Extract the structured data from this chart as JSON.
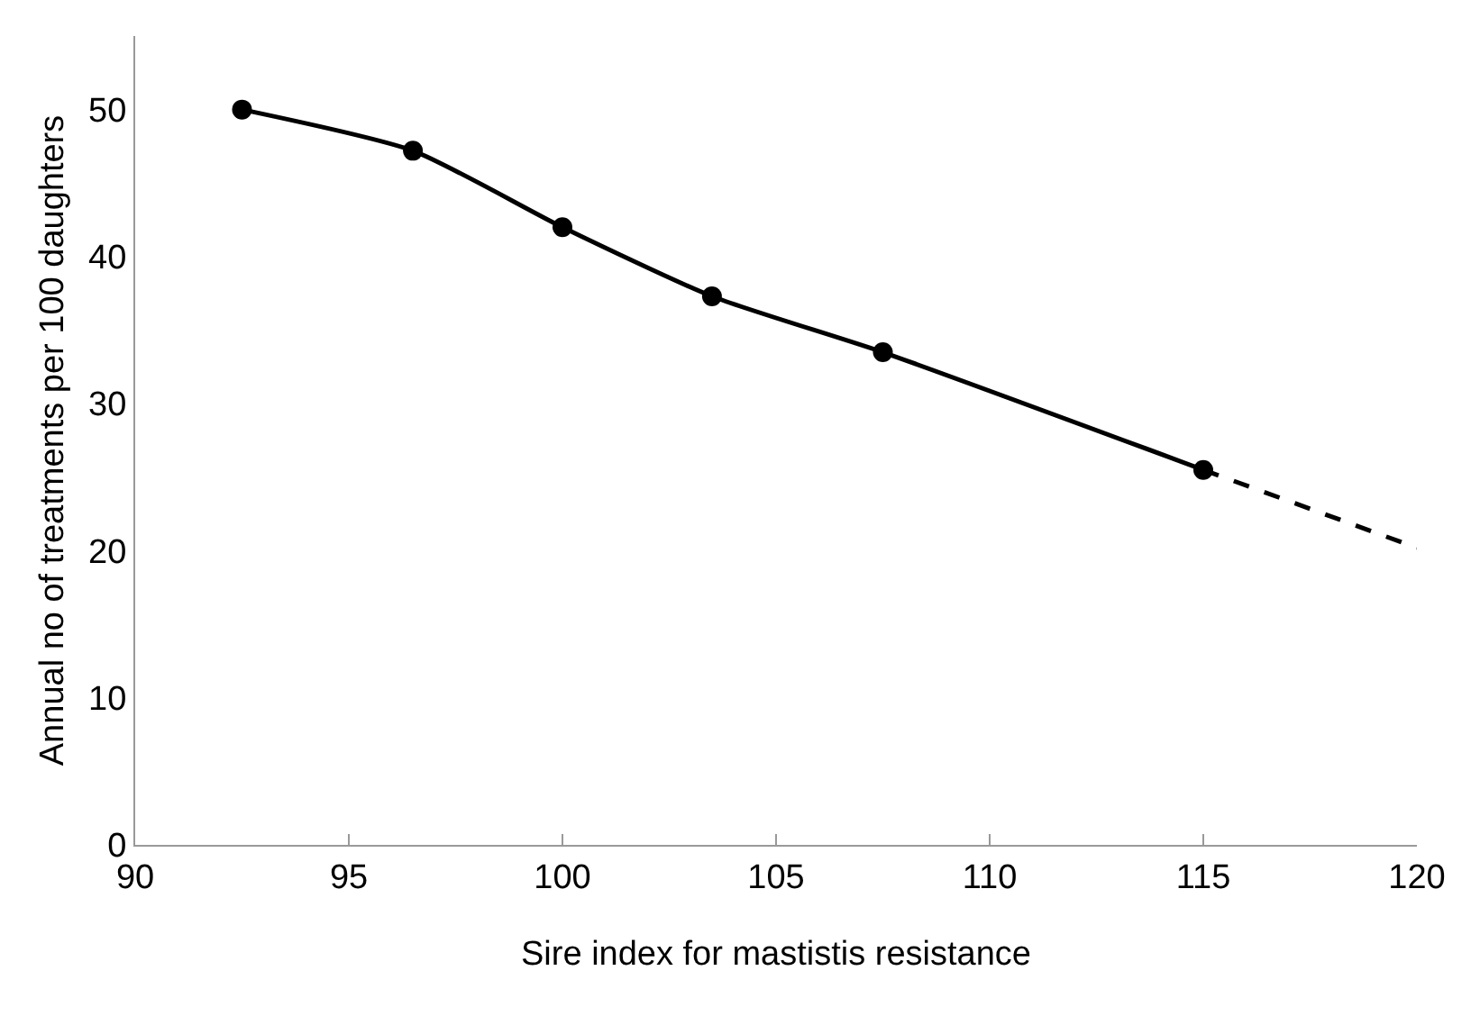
{
  "chart_data": {
    "type": "line",
    "xlabel": "Sire index for mastistis resistance",
    "ylabel": "Annual no of treatments per 100 daughters",
    "series": [
      {
        "color": "#000000",
        "marker": "circle",
        "line_style": "solid",
        "x": [
          92.5,
          96.5,
          100,
          103.5,
          107.5,
          115
        ],
        "values": [
          50,
          47.2,
          42,
          37.3,
          33.5,
          25.5
        ]
      },
      {
        "color": "#000000",
        "marker": "none",
        "line_style": "dashed",
        "x": [
          115,
          120
        ],
        "values": [
          25.5,
          20.2
        ]
      }
    ],
    "xlim": [
      90,
      120
    ],
    "xticks": [
      90,
      95,
      100,
      105,
      110,
      115,
      120
    ],
    "ylim": [
      0,
      55
    ],
    "yticks": [
      0,
      10,
      20,
      30,
      40,
      50
    ]
  }
}
